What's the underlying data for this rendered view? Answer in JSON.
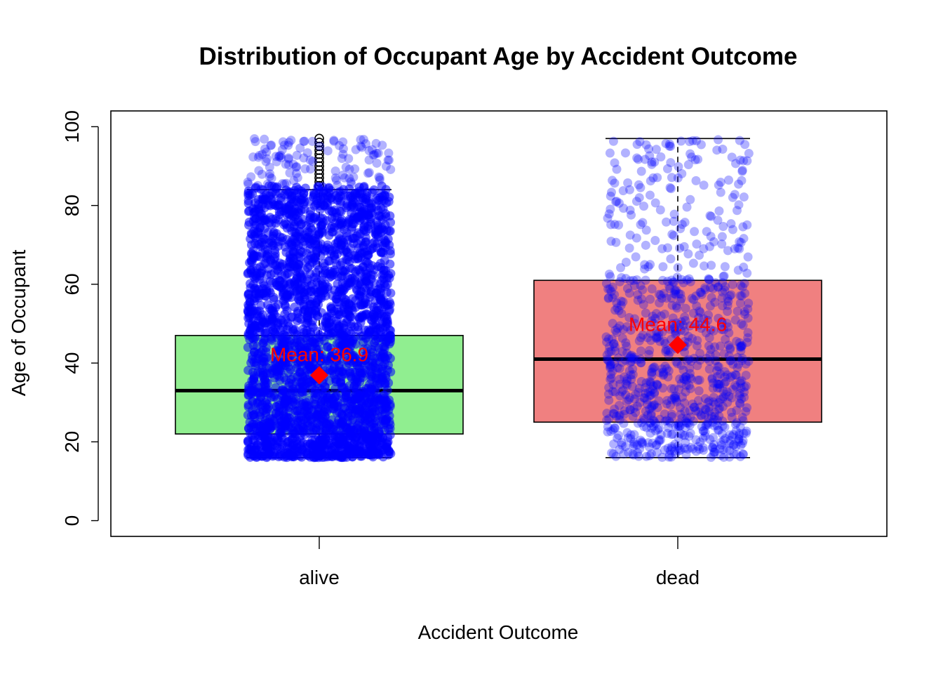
{
  "chart_data": {
    "type": "box",
    "title": "Distribution of Occupant Age by Accident Outcome",
    "xlabel": "Accident Outcome",
    "ylabel": "Age of Occupant",
    "ylim": [
      -4,
      104
    ],
    "yticks": [
      0,
      20,
      40,
      60,
      80,
      100
    ],
    "categories": [
      "alive",
      "dead"
    ],
    "boxes": [
      {
        "category": "alive",
        "fill": "#90ee90",
        "whisker_low": 16,
        "q1": 22,
        "median": 33,
        "q3": 47,
        "whisker_high": 84,
        "outliers": [
          85,
          86,
          87,
          88,
          89,
          90,
          91,
          92,
          93,
          94,
          95,
          96,
          97
        ],
        "mean": 36.9,
        "mean_label": "Mean: 36.9"
      },
      {
        "category": "dead",
        "fill": "#f08080",
        "whisker_low": 16,
        "q1": 25,
        "median": 41,
        "q3": 61,
        "whisker_high": 97,
        "outliers": [],
        "mean": 44.6,
        "mean_label": "Mean: 44.6"
      }
    ],
    "jitter_points": {
      "color": "#0000ff",
      "alive": {
        "min": 16,
        "max": 97,
        "density": "very high"
      },
      "dead": {
        "min": 16,
        "max": 97,
        "density": "moderate"
      }
    },
    "mean_marker_color": "#ff0000",
    "grid": false,
    "legend": "none"
  }
}
